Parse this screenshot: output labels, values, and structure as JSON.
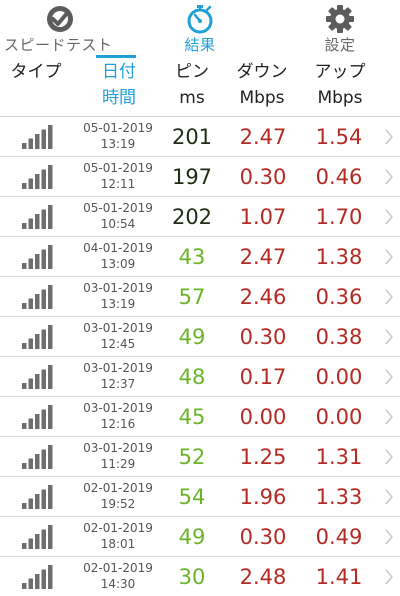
{
  "tabs": [
    {
      "label": "スピードテスト",
      "icon": "speedometer-check-icon"
    },
    {
      "label": "結果",
      "icon": "stopwatch-icon",
      "active": true
    },
    {
      "label": "設定",
      "icon": "gear-icon"
    }
  ],
  "header": {
    "type_label": "タイプ",
    "date_line1": "日付",
    "date_line2": "時間",
    "ping_line1": "ピン",
    "ping_line2": "ms",
    "down_line1": "ダウン",
    "down_line2": "Mbps",
    "up_line1": "アップ",
    "up_line2": "Mbps"
  },
  "colors": {
    "accent": "#1fa0d8",
    "ping_high": "#1e2e12",
    "ping_low": "#6ab42a",
    "speed": "#b52a22"
  },
  "results": [
    {
      "date": "05-01-2019",
      "time": "13:19",
      "ping": "201",
      "ping_level": "high",
      "down": "2.47",
      "up": "1.54"
    },
    {
      "date": "05-01-2019",
      "time": "12:11",
      "ping": "197",
      "ping_level": "high",
      "down": "0.30",
      "up": "0.46"
    },
    {
      "date": "05-01-2019",
      "time": "10:54",
      "ping": "202",
      "ping_level": "high",
      "down": "1.07",
      "up": "1.70"
    },
    {
      "date": "04-01-2019",
      "time": "13:09",
      "ping": "43",
      "ping_level": "low",
      "down": "2.47",
      "up": "1.38"
    },
    {
      "date": "03-01-2019",
      "time": "13:19",
      "ping": "57",
      "ping_level": "low",
      "down": "2.46",
      "up": "0.36"
    },
    {
      "date": "03-01-2019",
      "time": "12:45",
      "ping": "49",
      "ping_level": "low",
      "down": "0.30",
      "up": "0.38"
    },
    {
      "date": "03-01-2019",
      "time": "12:37",
      "ping": "48",
      "ping_level": "low",
      "down": "0.17",
      "up": "0.00"
    },
    {
      "date": "03-01-2019",
      "time": "12:16",
      "ping": "45",
      "ping_level": "low",
      "down": "0.00",
      "up": "0.00"
    },
    {
      "date": "03-01-2019",
      "time": "11:29",
      "ping": "52",
      "ping_level": "low",
      "down": "1.25",
      "up": "1.31"
    },
    {
      "date": "02-01-2019",
      "time": "19:52",
      "ping": "54",
      "ping_level": "low",
      "down": "1.96",
      "up": "1.33"
    },
    {
      "date": "02-01-2019",
      "time": "18:01",
      "ping": "49",
      "ping_level": "low",
      "down": "0.30",
      "up": "0.49"
    },
    {
      "date": "02-01-2019",
      "time": "14:30",
      "ping": "30",
      "ping_level": "low",
      "down": "2.48",
      "up": "1.41"
    }
  ]
}
